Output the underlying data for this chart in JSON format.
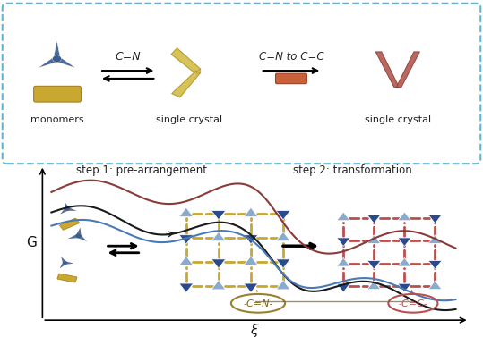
{
  "fig_width": 5.39,
  "fig_height": 3.77,
  "dpi": 100,
  "bg_color": "#ffffff",
  "top_panel": {
    "box_color": "#5bb8d4",
    "box_linestyle": "dashed",
    "label_monomers": "monomers",
    "label_sc1": "single crystal",
    "label_sc2": "single crystal",
    "arrow1_label": "C=N",
    "arrow2_label": "C=N to C=C",
    "blue_shape_color": "#3a5a8c",
    "yellow_shape_color": "#d4b84a",
    "red_shape_color": "#b05a50",
    "yellow_bar_color": "#d4b84a",
    "orange_bar_color": "#c8603a"
  },
  "bottom_panel": {
    "step1_label": "step 1: pre-arrangement",
    "step2_label": "step 2: transformation",
    "xlabel": "ξ",
    "ylabel": "G",
    "curve1_color": "#8b3a3a",
    "curve2_color": "#2a2a2a",
    "curve3_color": "#4a7ab5",
    "arrow_color": "#1a1a1a",
    "blue_triangle_color": "#3a5a9c",
    "blue_triangle_light": "#8aabcc",
    "yellow_link_color": "#c8a830",
    "red_link_color": "#b85050",
    "label_cn": "-C=N-",
    "label_cc": "-C=C-",
    "label_cn_color": "#9a8030",
    "label_cc_color": "#b85050"
  }
}
